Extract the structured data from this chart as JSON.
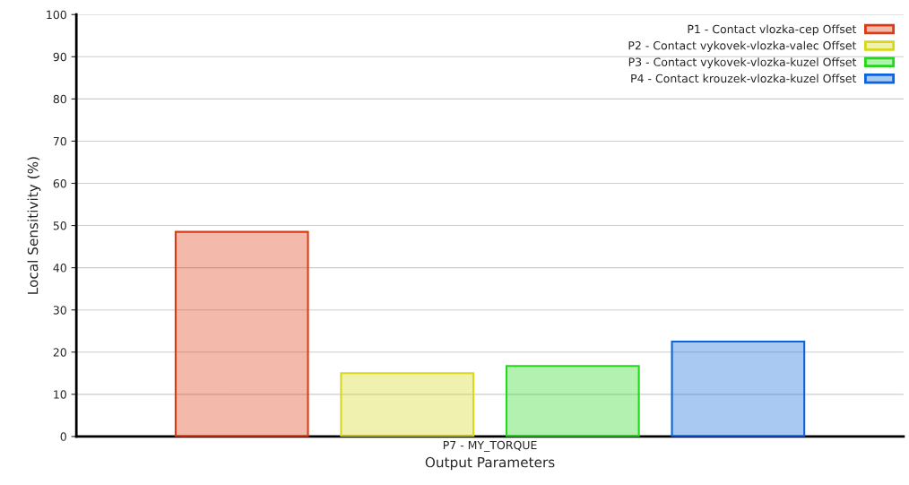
{
  "chart_data": {
    "type": "bar",
    "xlabel": "Output Parameters",
    "ylabel": "Local Sensitivity (%)",
    "categories": [
      "P7 - MY_TORQUE"
    ],
    "series": [
      {
        "name": "P1 - Contact vlozka-cep Offset",
        "color": "#dc3a12",
        "values": [
          48.5
        ]
      },
      {
        "name": "P2 - Contact vykovek-vlozka-valec Offset",
        "color": "#d8d81a",
        "values": [
          15
        ]
      },
      {
        "name": "P3 - Contact vykovek-vlozka-kuzel Offset",
        "color": "#22d81a",
        "values": [
          16.7
        ]
      },
      {
        "name": "P4 - Contact krouzek-vlozka-kuzel Offset",
        "color": "#0a64dc",
        "values": [
          22.5
        ]
      }
    ],
    "ylim": [
      0,
      100
    ],
    "yticks": [
      0,
      10,
      20,
      30,
      40,
      50,
      60,
      70,
      80,
      90,
      100
    ],
    "grid": "y",
    "legend": "top right"
  }
}
